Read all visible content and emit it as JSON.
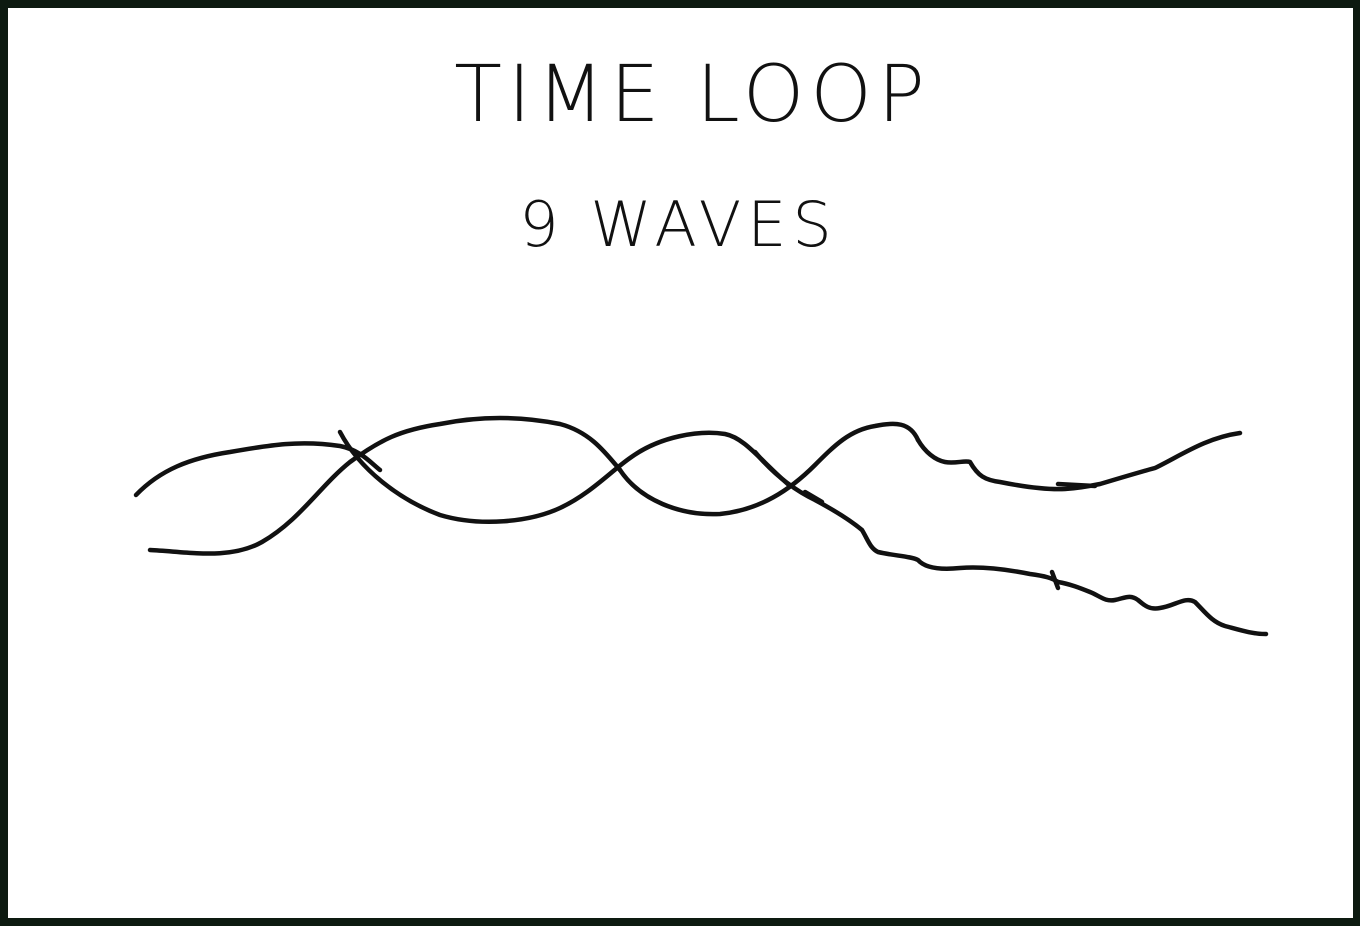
{
  "sketch": {
    "title": "TIME LOOP",
    "subtitle": "9 WAVES"
  },
  "colors": {
    "ink": "#111111",
    "paper": "#ffffff",
    "border": "#0d1a10"
  }
}
